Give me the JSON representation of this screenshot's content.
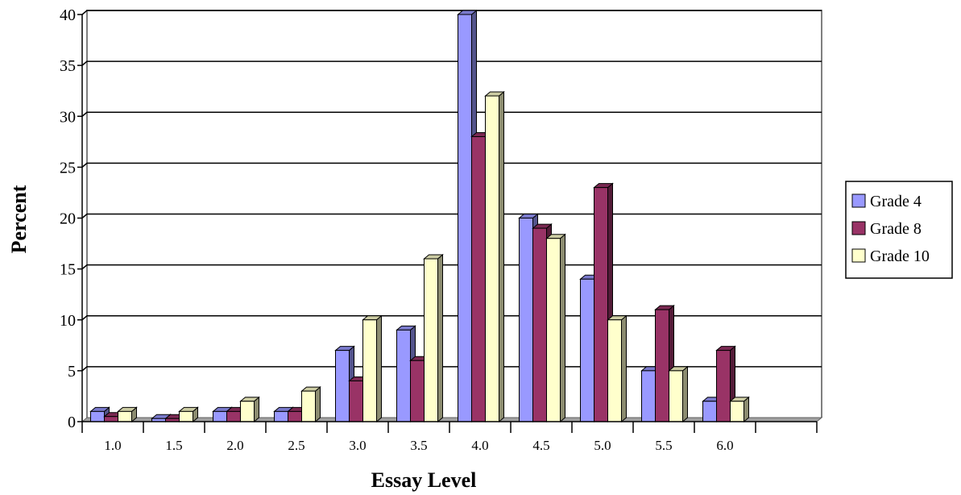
{
  "chart_data": {
    "type": "bar",
    "title": "",
    "xlabel": "Essay Level",
    "ylabel": "Percent",
    "ylim": [
      0,
      40
    ],
    "yticks": [
      0,
      5,
      10,
      15,
      20,
      25,
      30,
      35,
      40
    ],
    "grid": true,
    "legend_position": "right",
    "categories": [
      "1.0",
      "1.5",
      "2.0",
      "2.5",
      "3.0",
      "3.5",
      "4.0",
      "4.5",
      "5.0",
      "5.5",
      "6.0",
      ""
    ],
    "series": [
      {
        "name": "Grade 4",
        "color": "#9999ff",
        "values": [
          1,
          0.3,
          1,
          1,
          7,
          9,
          40,
          20,
          14,
          5,
          2,
          null
        ]
      },
      {
        "name": "Grade 8",
        "color": "#993366",
        "values": [
          0.5,
          0.3,
          1,
          1,
          4,
          6,
          28,
          19,
          23,
          11,
          7,
          null
        ]
      },
      {
        "name": "Grade 10",
        "color": "#ffffcc",
        "values": [
          1,
          1,
          2,
          3,
          10,
          16,
          32,
          18,
          10,
          5,
          2,
          null
        ]
      }
    ]
  }
}
